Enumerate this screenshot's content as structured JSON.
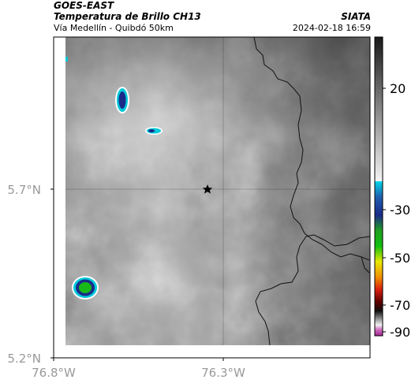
{
  "header": {
    "satellite": "GOES-EAST",
    "product": "Temperatura de Brillo CH13",
    "route": "Vía Medellín - Quibdó 50km",
    "institution": "SIATA",
    "timestamp": "2024-02-18 16:59"
  },
  "map": {
    "lat_ticks": [
      "5.7°N",
      "5.2°N"
    ],
    "lon_ticks": [
      "76.8°W",
      "76.3°W"
    ],
    "marker": "star-marker"
  },
  "colorbar": {
    "tick_labels": [
      "20",
      "-30",
      "-50",
      "-70",
      "-90"
    ],
    "colors": {
      "gray_top": "#1a1a1a",
      "gray_bottom": "#ffffff",
      "cyan": "#00c8d8",
      "blue": "#1a2a8a",
      "green": "#18a818",
      "yellow": "#e8e800",
      "red": "#d82010",
      "black": "#101010",
      "magenta": "#c040b0"
    }
  }
}
